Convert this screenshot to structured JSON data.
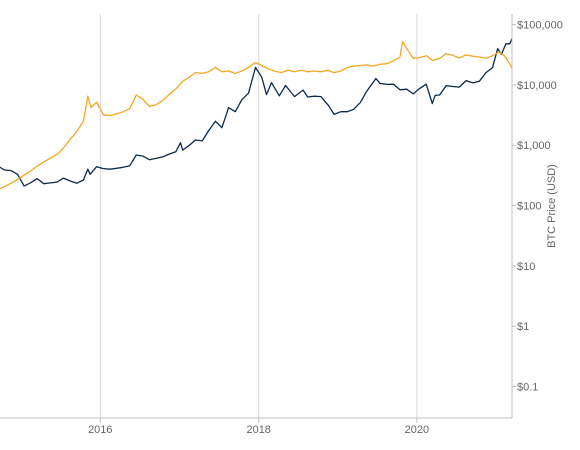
{
  "chart_data": {
    "type": "line",
    "title": "",
    "xlabel": "",
    "ylabel": "BTC Price (USD)",
    "y_scale": "log",
    "ylim": [
      0.03,
      150000
    ],
    "xlim": [
      "2014-09-25",
      "2021-03-15"
    ],
    "x_ticks": [
      {
        "value": "2016-01-01",
        "label": "2016"
      },
      {
        "value": "2018-01-01",
        "label": "2018"
      },
      {
        "value": "2020-01-01",
        "label": "2020"
      }
    ],
    "y_ticks": [
      {
        "value": 0.1,
        "label": "$0.1"
      },
      {
        "value": 1,
        "label": "$1"
      },
      {
        "value": 10,
        "label": "$10"
      },
      {
        "value": 100,
        "label": "$100"
      },
      {
        "value": 1000,
        "label": "$1,000"
      },
      {
        "value": 10000,
        "label": "$10,000"
      },
      {
        "value": 100000,
        "label": "$100,000"
      }
    ],
    "grid": {
      "vertical": true,
      "horizontal": false
    },
    "series": [
      {
        "color": "#0b2a4a",
        "points": [
          [
            "2014-09-25",
            430
          ],
          [
            "2014-10-15",
            390
          ],
          [
            "2014-11-15",
            380
          ],
          [
            "2014-12-15",
            330
          ],
          [
            "2015-01-14",
            210
          ],
          [
            "2015-02-15",
            240
          ],
          [
            "2015-03-15",
            280
          ],
          [
            "2015-04-15",
            230
          ],
          [
            "2015-05-15",
            237
          ],
          [
            "2015-06-15",
            245
          ],
          [
            "2015-07-15",
            285
          ],
          [
            "2015-08-15",
            255
          ],
          [
            "2015-09-15",
            235
          ],
          [
            "2015-10-15",
            265
          ],
          [
            "2015-11-04",
            400
          ],
          [
            "2015-11-15",
            330
          ],
          [
            "2015-12-15",
            440
          ],
          [
            "2016-01-15",
            410
          ],
          [
            "2016-02-15",
            400
          ],
          [
            "2016-03-15",
            415
          ],
          [
            "2016-04-15",
            430
          ],
          [
            "2016-05-15",
            455
          ],
          [
            "2016-06-15",
            690
          ],
          [
            "2016-07-15",
            660
          ],
          [
            "2016-08-15",
            575
          ],
          [
            "2016-09-15",
            610
          ],
          [
            "2016-10-15",
            640
          ],
          [
            "2016-11-15",
            715
          ],
          [
            "2016-12-15",
            780
          ],
          [
            "2017-01-05",
            1100
          ],
          [
            "2017-01-15",
            830
          ],
          [
            "2017-02-15",
            1000
          ],
          [
            "2017-03-15",
            1220
          ],
          [
            "2017-04-15",
            1180
          ],
          [
            "2017-05-15",
            1750
          ],
          [
            "2017-06-15",
            2500
          ],
          [
            "2017-07-15",
            1950
          ],
          [
            "2017-08-15",
            4200
          ],
          [
            "2017-09-15",
            3600
          ],
          [
            "2017-10-15",
            5700
          ],
          [
            "2017-11-15",
            7300
          ],
          [
            "2017-12-17",
            19500
          ],
          [
            "2018-01-15",
            13500
          ],
          [
            "2018-02-06",
            6900
          ],
          [
            "2018-03-01",
            10900
          ],
          [
            "2018-04-06",
            6600
          ],
          [
            "2018-05-05",
            9800
          ],
          [
            "2018-06-15",
            6400
          ],
          [
            "2018-07-25",
            8200
          ],
          [
            "2018-08-15",
            6300
          ],
          [
            "2018-09-15",
            6500
          ],
          [
            "2018-10-15",
            6400
          ],
          [
            "2018-11-20",
            4500
          ],
          [
            "2018-12-15",
            3250
          ],
          [
            "2019-01-15",
            3600
          ],
          [
            "2019-02-15",
            3600
          ],
          [
            "2019-03-15",
            3950
          ],
          [
            "2019-04-15",
            5100
          ],
          [
            "2019-05-15",
            7900
          ],
          [
            "2019-06-26",
            12800
          ],
          [
            "2019-07-15",
            10600
          ],
          [
            "2019-08-15",
            10200
          ],
          [
            "2019-09-15",
            10300
          ],
          [
            "2019-10-15",
            8300
          ],
          [
            "2019-11-15",
            8500
          ],
          [
            "2019-12-15",
            7100
          ],
          [
            "2020-01-15",
            8800
          ],
          [
            "2020-02-13",
            10300
          ],
          [
            "2020-03-12",
            4900
          ],
          [
            "2020-03-25",
            6700
          ],
          [
            "2020-04-15",
            6800
          ],
          [
            "2020-05-15",
            9700
          ],
          [
            "2020-06-15",
            9400
          ],
          [
            "2020-07-15",
            9200
          ],
          [
            "2020-08-15",
            11800
          ],
          [
            "2020-09-15",
            10800
          ],
          [
            "2020-10-15",
            11500
          ],
          [
            "2020-11-15",
            16000
          ],
          [
            "2020-12-15",
            19400
          ],
          [
            "2021-01-08",
            40000
          ],
          [
            "2021-01-25",
            32000
          ],
          [
            "2021-02-15",
            48000
          ],
          [
            "2021-03-05",
            48000
          ],
          [
            "2021-03-14",
            58000
          ]
        ]
      },
      {
        "color": "#f5a623",
        "points": [
          [
            "2014-09-25",
            190
          ],
          [
            "2014-10-15",
            205
          ],
          [
            "2014-11-15",
            235
          ],
          [
            "2014-12-15",
            270
          ],
          [
            "2015-01-15",
            320
          ],
          [
            "2015-02-15",
            380
          ],
          [
            "2015-03-15",
            450
          ],
          [
            "2015-04-15",
            530
          ],
          [
            "2015-05-15",
            610
          ],
          [
            "2015-06-15",
            700
          ],
          [
            "2015-07-15",
            900
          ],
          [
            "2015-08-15",
            1250
          ],
          [
            "2015-09-15",
            1700
          ],
          [
            "2015-10-15",
            2500
          ],
          [
            "2015-11-04",
            6500
          ],
          [
            "2015-11-20",
            4200
          ],
          [
            "2015-12-15",
            5200
          ],
          [
            "2016-01-15",
            3200
          ],
          [
            "2016-02-15",
            3100
          ],
          [
            "2016-03-15",
            3300
          ],
          [
            "2016-04-15",
            3600
          ],
          [
            "2016-05-15",
            4000
          ],
          [
            "2016-06-15",
            6800
          ],
          [
            "2016-07-15",
            5800
          ],
          [
            "2016-08-15",
            4400
          ],
          [
            "2016-09-15",
            4700
          ],
          [
            "2016-10-15",
            5500
          ],
          [
            "2016-11-15",
            7000
          ],
          [
            "2016-12-15",
            8600
          ],
          [
            "2017-01-15",
            11500
          ],
          [
            "2017-02-15",
            13500
          ],
          [
            "2017-03-15",
            16000
          ],
          [
            "2017-04-15",
            15500
          ],
          [
            "2017-05-15",
            16500
          ],
          [
            "2017-06-15",
            19500
          ],
          [
            "2017-07-15",
            16500
          ],
          [
            "2017-08-15",
            17000
          ],
          [
            "2017-09-15",
            15500
          ],
          [
            "2017-10-15",
            17000
          ],
          [
            "2017-11-15",
            19500
          ],
          [
            "2017-12-17",
            23500
          ],
          [
            "2018-01-15",
            21000
          ],
          [
            "2018-02-15",
            18500
          ],
          [
            "2018-03-15",
            17000
          ],
          [
            "2018-04-15",
            16000
          ],
          [
            "2018-05-15",
            17500
          ],
          [
            "2018-06-15",
            16500
          ],
          [
            "2018-07-15",
            17500
          ],
          [
            "2018-08-15",
            16500
          ],
          [
            "2018-09-15",
            17000
          ],
          [
            "2018-10-15",
            16500
          ],
          [
            "2018-11-15",
            17500
          ],
          [
            "2018-12-15",
            16000
          ],
          [
            "2019-01-15",
            17000
          ],
          [
            "2019-02-15",
            19500
          ],
          [
            "2019-03-15",
            20500
          ],
          [
            "2019-04-15",
            21000
          ],
          [
            "2019-05-15",
            21500
          ],
          [
            "2019-06-15",
            20500
          ],
          [
            "2019-07-15",
            22000
          ],
          [
            "2019-08-15",
            22500
          ],
          [
            "2019-09-15",
            25000
          ],
          [
            "2019-10-15",
            29000
          ],
          [
            "2019-10-27",
            52000
          ],
          [
            "2019-11-10",
            43000
          ],
          [
            "2019-12-15",
            27500
          ],
          [
            "2020-01-15",
            28500
          ],
          [
            "2020-02-15",
            30500
          ],
          [
            "2020-03-12",
            25500
          ],
          [
            "2020-04-15",
            27500
          ],
          [
            "2020-05-15",
            33000
          ],
          [
            "2020-06-15",
            31000
          ],
          [
            "2020-07-15",
            28000
          ],
          [
            "2020-08-15",
            31500
          ],
          [
            "2020-09-15",
            30000
          ],
          [
            "2020-10-15",
            29000
          ],
          [
            "2020-11-15",
            27500
          ],
          [
            "2020-12-15",
            30500
          ],
          [
            "2021-01-15",
            35000
          ],
          [
            "2021-02-10",
            30000
          ],
          [
            "2021-02-28",
            24000
          ],
          [
            "2021-03-14",
            19000
          ]
        ]
      }
    ]
  }
}
